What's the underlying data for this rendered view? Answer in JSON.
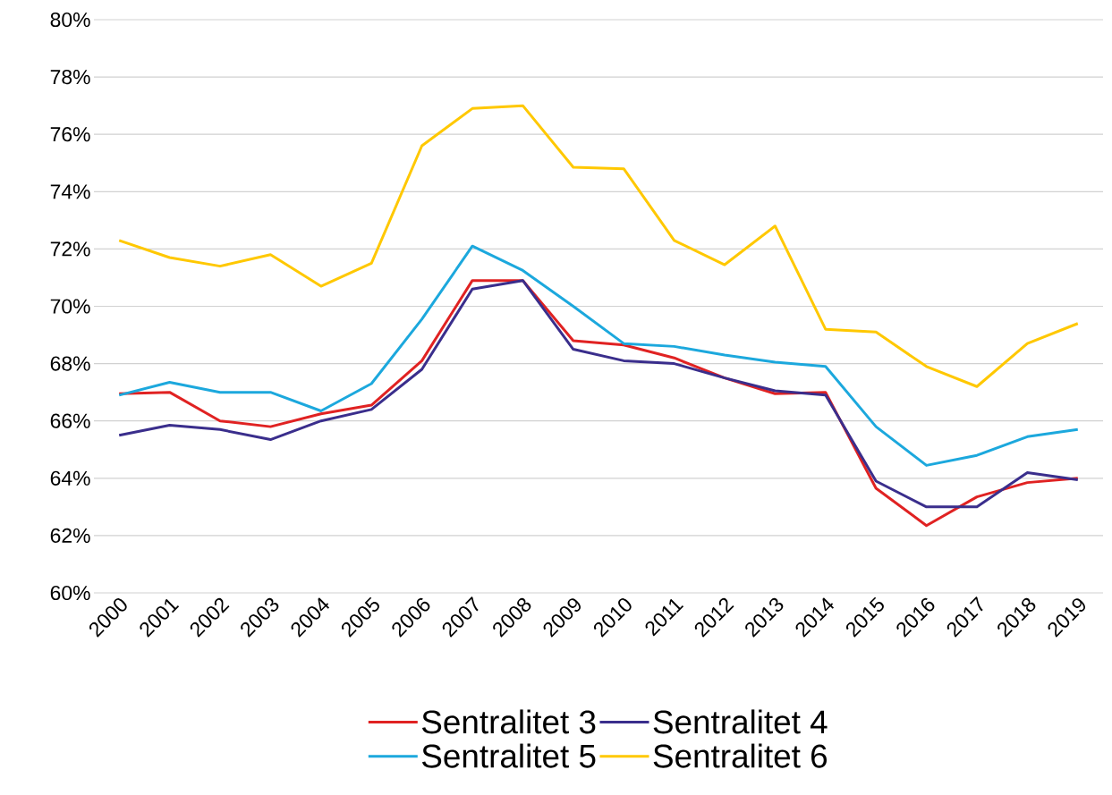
{
  "chart_data": {
    "type": "line",
    "categories": [
      "2000",
      "2001",
      "2002",
      "2003",
      "2004",
      "2005",
      "2006",
      "2007",
      "2008",
      "2009",
      "2010",
      "2011",
      "2012",
      "2013",
      "2014",
      "2015",
      "2016",
      "2017",
      "2018",
      "2019"
    ],
    "series": [
      {
        "name": "Sentralitet 3",
        "color": "#e02222",
        "values": [
          66.95,
          67.0,
          66.0,
          65.8,
          66.25,
          66.55,
          68.1,
          70.9,
          70.9,
          68.8,
          68.65,
          68.2,
          67.5,
          66.95,
          67.0,
          63.65,
          62.35,
          63.35,
          63.85,
          64.0
        ]
      },
      {
        "name": "Sentralitet 4",
        "color": "#3a2e8c",
        "values": [
          65.5,
          65.85,
          65.7,
          65.35,
          66.0,
          66.4,
          67.8,
          70.6,
          70.9,
          68.5,
          68.1,
          68.0,
          67.5,
          67.05,
          66.9,
          63.9,
          63.0,
          63.0,
          64.2,
          63.95
        ]
      },
      {
        "name": "Sentralitet 5",
        "color": "#1ca8dd",
        "values": [
          66.9,
          67.35,
          67.0,
          67.0,
          66.35,
          67.3,
          69.55,
          72.1,
          71.25,
          70.0,
          68.7,
          68.6,
          68.3,
          68.05,
          67.9,
          65.8,
          64.45,
          64.8,
          65.45,
          65.7
        ]
      },
      {
        "name": "Sentralitet 6",
        "color": "#ffc800",
        "values": [
          72.3,
          71.7,
          71.4,
          71.8,
          70.7,
          71.5,
          75.6,
          76.9,
          77.0,
          74.85,
          74.8,
          72.3,
          71.45,
          72.8,
          69.2,
          69.1,
          67.9,
          67.2,
          68.7,
          69.4
        ]
      }
    ],
    "ylim": [
      60,
      80
    ],
    "yticks": [
      {
        "value": 60,
        "label": "60%"
      },
      {
        "value": 62,
        "label": "62%"
      },
      {
        "value": 64,
        "label": "64%"
      },
      {
        "value": 66,
        "label": "66%"
      },
      {
        "value": 68,
        "label": "68%"
      },
      {
        "value": 70,
        "label": "70%"
      },
      {
        "value": 72,
        "label": "72%"
      },
      {
        "value": 74,
        "label": "74%"
      },
      {
        "value": 76,
        "label": "76%"
      },
      {
        "value": 78,
        "label": "78%"
      },
      {
        "value": 80,
        "label": "80%"
      }
    ],
    "grid": "y",
    "legend": "bottom",
    "marker": "none",
    "line_style": "solid"
  }
}
